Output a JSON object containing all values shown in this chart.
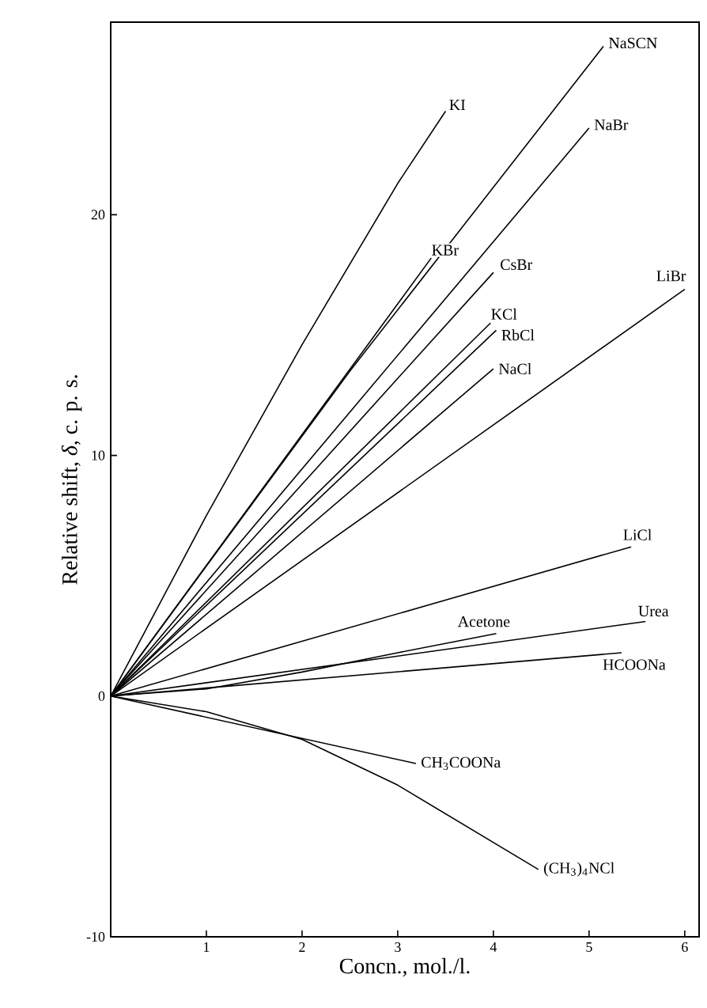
{
  "chart_data": {
    "type": "line",
    "xlabel": "Concn., mol./l.",
    "ylabel": "Relative shift, *δ*, c. p. s.",
    "xlim": [
      0,
      6.15
    ],
    "ylim": [
      -10,
      28
    ],
    "xticks": [
      1,
      2,
      3,
      4,
      5,
      6
    ],
    "yticks": [
      -10,
      0,
      10,
      20
    ],
    "grid": false,
    "legend": false,
    "marker": "none",
    "line_style": "solid",
    "series": [
      {
        "name": "KI",
        "color": "#000000",
        "x": [
          0,
          1,
          2,
          3,
          3.5
        ],
        "values": [
          0,
          7.5,
          14.6,
          21.3,
          24.3
        ]
      },
      {
        "name": "NaSCN",
        "color": "#000000",
        "x": [
          0,
          2.5,
          5.15
        ],
        "values": [
          0,
          13.5,
          27
        ]
      },
      {
        "name": "NaBr",
        "color": "#000000",
        "x": [
          0,
          5.0
        ],
        "values": [
          0,
          23.6
        ]
      },
      {
        "name": "KBr",
        "color": "#000000",
        "x": [
          0,
          3.35
        ],
        "values": [
          0,
          18.2
        ]
      },
      {
        "name": "CsBr",
        "color": "#000000",
        "x": [
          0,
          4.0
        ],
        "values": [
          0,
          17.6
        ]
      },
      {
        "name": "KCl",
        "color": "#000000",
        "x": [
          0,
          3.97
        ],
        "values": [
          0,
          15.5
        ]
      },
      {
        "name": "RbCl",
        "color": "#000000",
        "x": [
          0,
          4.03
        ],
        "values": [
          0,
          15.2
        ]
      },
      {
        "name": "NaCl",
        "color": "#000000",
        "x": [
          0,
          4.0
        ],
        "values": [
          0,
          13.6
        ]
      },
      {
        "name": "LiBr",
        "color": "#000000",
        "x": [
          0,
          6.0
        ],
        "values": [
          0,
          16.9
        ]
      },
      {
        "name": "LiCl",
        "color": "#000000",
        "x": [
          0,
          5.44
        ],
        "values": [
          0,
          6.2
        ]
      },
      {
        "name": "Acetone",
        "color": "#000000",
        "x": [
          0,
          1,
          2,
          3,
          4.03
        ],
        "values": [
          0,
          0.3,
          1.0,
          1.8,
          2.6
        ]
      },
      {
        "name": "Urea",
        "color": "#000000",
        "x": [
          0,
          5.59
        ],
        "values": [
          0,
          3.1
        ]
      },
      {
        "name": "HCOONa",
        "color": "#000000",
        "x": [
          0,
          5.34
        ],
        "values": [
          0,
          1.8
        ]
      },
      {
        "name": "CH$_{3}$COONa",
        "color": "#000000",
        "x": [
          0,
          3.19
        ],
        "values": [
          0,
          -2.8
        ]
      },
      {
        "name": "(CH$_{3}$)$_{4}$NCl",
        "color": "#000000",
        "x": [
          0,
          1,
          2,
          3,
          4.47
        ],
        "values": [
          0,
          -0.65,
          -1.8,
          -3.7,
          -7.2
        ]
      }
    ]
  }
}
